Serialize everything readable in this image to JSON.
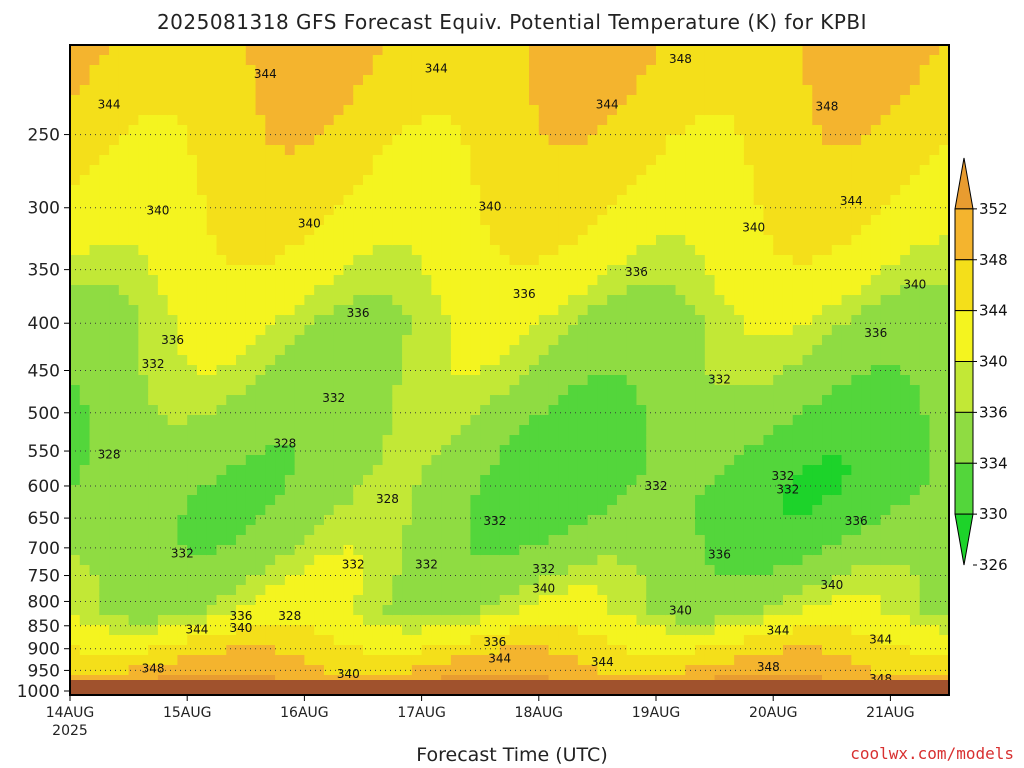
{
  "title": "2025081318 GFS Forecast Equiv. Potential Temperature (K) for KPBI",
  "xlabel": "Forecast Time (UTC)",
  "credit": "coolwx.com/models",
  "chart_data": {
    "type": "heatmap",
    "title": "2025081318 GFS Forecast Equiv. Potential Temperature (K) for KPBI",
    "xlabel": "Forecast Time (UTC)",
    "ylabel": "",
    "x_ticks": [
      {
        "label": "14AUG",
        "sub": "2025",
        "t": 0
      },
      {
        "label": "15AUG",
        "sub": "",
        "t": 24
      },
      {
        "label": "16AUG",
        "sub": "",
        "t": 48
      },
      {
        "label": "17AUG",
        "sub": "",
        "t": 72
      },
      {
        "label": "18AUG",
        "sub": "",
        "t": 96
      },
      {
        "label": "19AUG",
        "sub": "",
        "t": 120
      },
      {
        "label": "20AUG",
        "sub": "",
        "t": 144
      },
      {
        "label": "21AUG",
        "sub": "",
        "t": 168
      }
    ],
    "xlim_hours_from_14aug00z": [
      0,
      180
    ],
    "y_levels_hpa": [
      250,
      300,
      350,
      400,
      450,
      500,
      550,
      600,
      650,
      700,
      750,
      800,
      850,
      900,
      950,
      1000
    ],
    "ylim_hpa": [
      1010,
      200
    ],
    "y_scale": "log",
    "grid": true,
    "colorbar": {
      "units": "K",
      "levels": [
        326,
        330,
        334,
        336,
        340,
        344,
        348,
        352
      ],
      "colors": [
        "#1dd32a",
        "#53d63b",
        "#8fdc42",
        "#c2e836",
        "#f4f41f",
        "#f4df1a",
        "#f4b42e",
        "#e89c30"
      ],
      "extend": "both",
      "placement": "right"
    },
    "contour_labels": [
      {
        "text": "344",
        "t": 8,
        "p": 232
      },
      {
        "text": "344",
        "t": 40,
        "p": 215
      },
      {
        "text": "344",
        "t": 75,
        "p": 212
      },
      {
        "text": "348",
        "t": 125,
        "p": 207
      },
      {
        "text": "344",
        "t": 110,
        "p": 232
      },
      {
        "text": "348",
        "t": 155,
        "p": 233
      },
      {
        "text": "340",
        "t": 18,
        "p": 302
      },
      {
        "text": "340",
        "t": 49,
        "p": 312
      },
      {
        "text": "340",
        "t": 86,
        "p": 299
      },
      {
        "text": "340",
        "t": 140,
        "p": 315
      },
      {
        "text": "344",
        "t": 160,
        "p": 295
      },
      {
        "text": "340",
        "t": 173,
        "p": 363
      },
      {
        "text": "336",
        "t": 116,
        "p": 352
      },
      {
        "text": "336",
        "t": 93,
        "p": 372
      },
      {
        "text": "336",
        "t": 59,
        "p": 390
      },
      {
        "text": "336",
        "t": 21,
        "p": 417
      },
      {
        "text": "336",
        "t": 165,
        "p": 410
      },
      {
        "text": "332",
        "t": 17,
        "p": 443
      },
      {
        "text": "332",
        "t": 54,
        "p": 482
      },
      {
        "text": "332",
        "t": 133,
        "p": 460
      },
      {
        "text": "332",
        "t": 120,
        "p": 600
      },
      {
        "text": "332",
        "t": 146,
        "p": 585
      },
      {
        "text": "328",
        "t": 8,
        "p": 555
      },
      {
        "text": "328",
        "t": 44,
        "p": 540
      },
      {
        "text": "328",
        "t": 65,
        "p": 620
      },
      {
        "text": "332",
        "t": 87,
        "p": 655
      },
      {
        "text": "332",
        "t": 23,
        "p": 710
      },
      {
        "text": "332",
        "t": 58,
        "p": 730
      },
      {
        "text": "332",
        "t": 73,
        "p": 730
      },
      {
        "text": "332",
        "t": 97,
        "p": 738
      },
      {
        "text": "340",
        "t": 97,
        "p": 775
      },
      {
        "text": "336",
        "t": 35,
        "p": 830
      },
      {
        "text": "340",
        "t": 35,
        "p": 855
      },
      {
        "text": "328",
        "t": 45,
        "p": 830
      },
      {
        "text": "344",
        "t": 26,
        "p": 858
      },
      {
        "text": "336",
        "t": 87,
        "p": 885
      },
      {
        "text": "344",
        "t": 88,
        "p": 922
      },
      {
        "text": "344",
        "t": 109,
        "p": 930
      },
      {
        "text": "340",
        "t": 57,
        "p": 958
      },
      {
        "text": "348",
        "t": 17,
        "p": 945
      },
      {
        "text": "336",
        "t": 133,
        "p": 712
      },
      {
        "text": "340",
        "t": 125,
        "p": 818
      },
      {
        "text": "340",
        "t": 156,
        "p": 768
      },
      {
        "text": "344",
        "t": 145,
        "p": 860
      },
      {
        "text": "344",
        "t": 166,
        "p": 880
      },
      {
        "text": "348",
        "t": 143,
        "p": 942
      },
      {
        "text": "348",
        "t": 166,
        "p": 970
      },
      {
        "text": "336",
        "t": 161,
        "p": 655
      },
      {
        "text": "332",
        "t": 147,
        "p": 605
      }
    ]
  }
}
